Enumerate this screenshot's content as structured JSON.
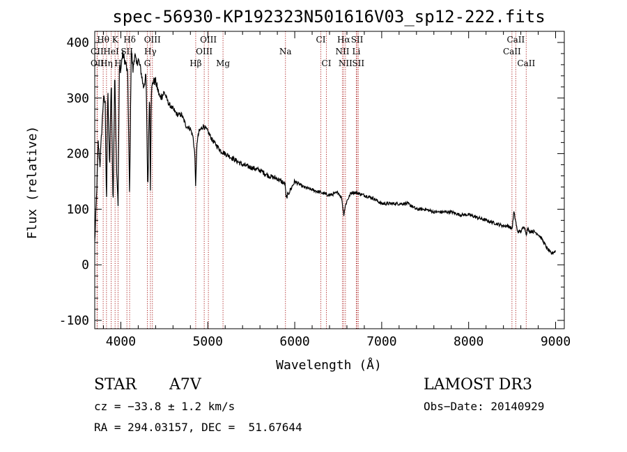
{
  "chart_data": {
    "type": "line",
    "title": "spec-56930-KP192323N501616V03_sp12-222.fits",
    "xlabel": "Wavelength (Å)",
    "ylabel": "Flux (relative)",
    "xlim": [
      3700,
      9100
    ],
    "ylim": [
      -115,
      420
    ],
    "xticks": [
      4000,
      5000,
      6000,
      7000,
      8000,
      9000
    ],
    "yticks": [
      -100,
      0,
      100,
      200,
      300,
      400
    ],
    "series": [
      {
        "name": "spectrum",
        "x": [
          3700,
          3720,
          3740,
          3760,
          3780,
          3800,
          3820,
          3835,
          3850,
          3870,
          3890,
          3910,
          3930,
          3950,
          3968,
          3985,
          4000,
          4020,
          4040,
          4060,
          4080,
          4101,
          4120,
          4140,
          4160,
          4180,
          4200,
          4230,
          4260,
          4290,
          4310,
          4330,
          4340,
          4350,
          4370,
          4400,
          4450,
          4500,
          4550,
          4600,
          4650,
          4700,
          4750,
          4800,
          4830,
          4850,
          4861,
          4875,
          4900,
          4950,
          5000,
          5050,
          5100,
          5150,
          5200,
          5300,
          5400,
          5500,
          5600,
          5700,
          5800,
          5890,
          5900,
          6000,
          6100,
          6200,
          6300,
          6400,
          6500,
          6540,
          6563,
          6580,
          6600,
          6650,
          6700,
          6800,
          6900,
          7000,
          7100,
          7200,
          7300,
          7400,
          7500,
          7600,
          7700,
          7800,
          7900,
          8000,
          8100,
          8200,
          8300,
          8400,
          8450,
          8500,
          8520,
          8545,
          8560,
          8600,
          8640,
          8662,
          8680,
          8700,
          8750,
          8800,
          8850,
          8900,
          8950,
          9000
        ],
        "values": [
          40,
          120,
          220,
          180,
          240,
          300,
          290,
          110,
          320,
          170,
          340,
          100,
          350,
          180,
          110,
          360,
          350,
          380,
          370,
          360,
          340,
          120,
          390,
          350,
          380,
          360,
          370,
          350,
          320,
          340,
          130,
          320,
          140,
          310,
          330,
          330,
          300,
          310,
          290,
          280,
          270,
          270,
          250,
          245,
          230,
          200,
          140,
          220,
          240,
          250,
          240,
          225,
          215,
          205,
          200,
          190,
          180,
          175,
          170,
          160,
          155,
          145,
          120,
          150,
          140,
          135,
          130,
          125,
          130,
          120,
          90,
          105,
          115,
          130,
          130,
          125,
          120,
          110,
          110,
          110,
          110,
          100,
          100,
          95,
          95,
          95,
          90,
          90,
          85,
          80,
          75,
          70,
          70,
          65,
          95,
          75,
          60,
          60,
          70,
          55,
          65,
          60,
          60,
          55,
          45,
          30,
          20,
          25
        ]
      }
    ],
    "lines": [
      {
        "name": "H-theta",
        "wl": 3797,
        "label": "Hθ",
        "row": 1
      },
      {
        "name": "Ca-II-K",
        "wl": 3934,
        "label": "K",
        "row": 1
      },
      {
        "name": "H-delta",
        "wl": 4101,
        "label": "Hδ",
        "row": 1
      },
      {
        "name": "O-III-4363",
        "wl": 4363,
        "label": "OIII",
        "row": 1
      },
      {
        "name": "O-III-5007",
        "wl": 5007,
        "label": "OIII",
        "row": 1
      },
      {
        "name": "Ca-I",
        "wl": 6300,
        "label": "CI",
        "row": 1
      },
      {
        "name": "H-alpha",
        "wl": 6563,
        "label": "Hα",
        "row": 1
      },
      {
        "name": "S-II-6717",
        "wl": 6717,
        "label": "SII",
        "row": 1
      },
      {
        "name": "Ca-II-8542",
        "wl": 8542,
        "label": "CaII",
        "row": 1
      },
      {
        "name": "Ca-II-3727",
        "wl": 3727,
        "label": "CII",
        "row": 2
      },
      {
        "name": "He-I-3889",
        "wl": 3889,
        "label": "HeI",
        "row": 2
      },
      {
        "name": "S-II-4070",
        "wl": 4070,
        "label": "SII",
        "row": 2
      },
      {
        "name": "H-gamma",
        "wl": 4340,
        "label": "Hγ",
        "row": 2
      },
      {
        "name": "O-III-4959",
        "wl": 4959,
        "label": "OIII",
        "row": 2
      },
      {
        "name": "Na",
        "wl": 5893,
        "label": "Na",
        "row": 2
      },
      {
        "name": "N-II-6548",
        "wl": 6548,
        "label": "NII",
        "row": 2
      },
      {
        "name": "Li",
        "wl": 6708,
        "label": "Li",
        "row": 2
      },
      {
        "name": "Ca-II-8498",
        "wl": 8498,
        "label": "CaII",
        "row": 2
      },
      {
        "name": "O-II-3727",
        "wl": 3729,
        "label": "OII",
        "row": 3
      },
      {
        "name": "H-eta",
        "wl": 3835,
        "label": "Hη",
        "row": 3
      },
      {
        "name": "Ca-II-H",
        "wl": 3968,
        "label": "H",
        "row": 3
      },
      {
        "name": "G-band",
        "wl": 4305,
        "label": "G",
        "row": 3
      },
      {
        "name": "H-beta",
        "wl": 4861,
        "label": "Hβ",
        "row": 3
      },
      {
        "name": "Mg",
        "wl": 5175,
        "label": "Mg",
        "row": 3
      },
      {
        "name": "Ca-I-6364",
        "wl": 6364,
        "label": "CI",
        "row": 3
      },
      {
        "name": "N-II-6583",
        "wl": 6583,
        "label": "NII",
        "row": 3
      },
      {
        "name": "S-II-6731",
        "wl": 6731,
        "label": "SII",
        "row": 3
      },
      {
        "name": "Ca-II-8662",
        "wl": 8662,
        "label": "CaII",
        "row": 3
      }
    ]
  },
  "footer": {
    "class_label": "STAR",
    "subclass": "A7V",
    "survey": "LAMOST DR3",
    "cz": "cz = −33.8 ± 1.2 km/s",
    "obs_date": "Obs−Date: 20140929",
    "coords": "RA = 294.03157, DEC =  51.67644"
  }
}
